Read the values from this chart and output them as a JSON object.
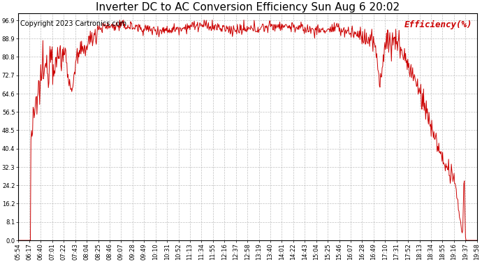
{
  "title": "Inverter DC to AC Conversion Efficiency Sun Aug 6 20:02",
  "copyright": "Copyright 2023 Cartronics.com",
  "legend_label": "Efficiency(%)",
  "line_color": "#cc0000",
  "background_color": "#ffffff",
  "grid_color": "#b0b0b0",
  "ylabel_color": "#cc0000",
  "ylim": [
    0.0,
    100.0
  ],
  "yticks": [
    0.0,
    8.1,
    16.2,
    24.2,
    32.3,
    40.4,
    48.5,
    56.5,
    64.6,
    72.7,
    80.8,
    88.9,
    96.9
  ],
  "xtick_labels": [
    "05:54",
    "06:17",
    "06:40",
    "07:01",
    "07:22",
    "07:43",
    "08:04",
    "08:25",
    "08:46",
    "09:07",
    "09:28",
    "09:49",
    "10:10",
    "10:31",
    "10:52",
    "11:13",
    "11:34",
    "11:55",
    "12:16",
    "12:37",
    "12:58",
    "13:19",
    "13:40",
    "14:01",
    "14:22",
    "14:43",
    "15:04",
    "15:25",
    "15:46",
    "16:07",
    "16:28",
    "16:49",
    "17:10",
    "17:31",
    "17:52",
    "18:13",
    "18:34",
    "18:55",
    "19:16",
    "19:37",
    "19:58"
  ],
  "title_fontsize": 11,
  "copyright_fontsize": 7,
  "tick_fontsize": 6,
  "legend_fontsize": 9,
  "figwidth": 6.9,
  "figheight": 3.75,
  "dpi": 100
}
